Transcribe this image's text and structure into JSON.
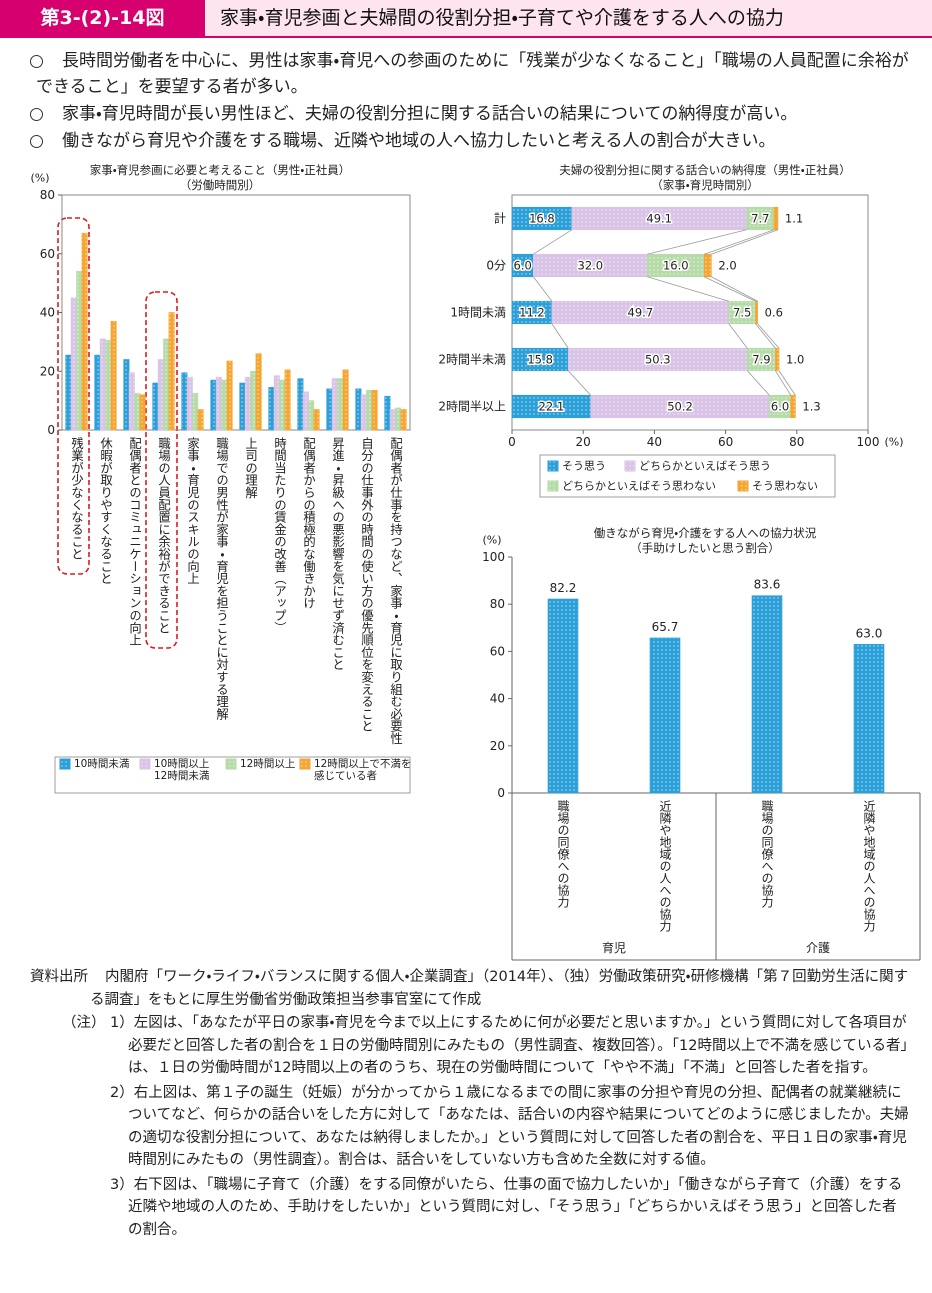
{
  "header": {
    "figure_number": "第3-(2)-14図",
    "title": "家事・育児参画と夫婦間の役割分担・子育てや介護をする人への協力"
  },
  "summary": [
    "長時間労働者を中心に、男性は家事・育児への参画のために「残業が少なくなること」「職場の人員配置に余裕ができること」を要望する者が多い。",
    "家事・育児時間が長い男性ほど、夫婦の役割分担に関する話合いの結果についての納得度が高い。",
    "働きながら育児や介護をする職場、近隣や地域の人へ協力したいと考える人の割合が大きい。"
  ],
  "chart_data": [
    {
      "type": "bar",
      "title": "家事・育児参画に必要と考えること（男性・正社員）",
      "subtitle": "（労働時間別）",
      "y_unit": "(%)",
      "categories": [
        "残業が少なくなること",
        "休暇が取りやすくなること",
        "配偶者とのコミュニケーションの向上",
        "職場の人員配置に余裕ができること",
        "家事・育児のスキルの向上",
        "職場での男性が家事・育児を担うことに対する理解",
        "上司の理解",
        "時間当たりの賃金の改善（アップ）",
        "配偶者からの積極的な働きかけ",
        "昇進・昇級への悪影響を気にせず済むこと",
        "自分の仕事外の時間の使い方の優先順位を変えること",
        "配偶者が仕事を持つなど、家事・育児に取り組む必要性"
      ],
      "series": [
        {
          "name": "10時間未満",
          "color": "#2b9fd8",
          "values": [
            25.5,
            25.5,
            24,
            16,
            19.5,
            17,
            16,
            14.5,
            17.5,
            14,
            14,
            11.5
          ]
        },
        {
          "name": "10時間以上12時間未満",
          "color": "#d9c3e6",
          "values": [
            45,
            31,
            19.5,
            24,
            18,
            18,
            18,
            18.5,
            13,
            17.5,
            12,
            7
          ]
        },
        {
          "name": "12時間以上",
          "color": "#b5dca8",
          "values": [
            54,
            30.5,
            12.5,
            31,
            12.5,
            17,
            20,
            17,
            10,
            17.5,
            13.5,
            7.5
          ]
        },
        {
          "name": "12時間以上で不満を感じている者",
          "color": "#f6a531",
          "values": [
            67,
            37,
            12,
            40,
            7,
            23.5,
            26,
            20.5,
            7,
            20.5,
            13.5,
            7
          ]
        }
      ],
      "ylim": [
        0,
        80
      ],
      "yticks": [
        0,
        20,
        40,
        60,
        80
      ],
      "grid": false,
      "legend": "bottom"
    },
    {
      "type": "bar",
      "orientation": "horizontal",
      "stacked": true,
      "title": "夫婦の役割分担に関する話合いの納得度（男性・正社員）",
      "subtitle": "（家事・育児時間別）",
      "x_unit": "(%)",
      "categories": [
        "計",
        "0分",
        "1時間未満",
        "2時間半未満",
        "2時間半以上"
      ],
      "series": [
        {
          "name": "そう思う",
          "color": "#2b9fd8",
          "values": [
            16.8,
            6.0,
            11.2,
            15.8,
            22.1
          ],
          "value_labels": [
            "16.8",
            "6.0",
            "11.2",
            "15.8",
            "22.1"
          ]
        },
        {
          "name": "どちらかといえばそう思う",
          "color": "#d9c3e6",
          "values": [
            49.1,
            32.0,
            49.7,
            50.3,
            50.2
          ],
          "value_labels": [
            "49.1",
            "32.0",
            "49.7",
            "50.3",
            "50.2"
          ]
        },
        {
          "name": "どちらかといえばそう思わない",
          "color": "#b5dca8",
          "values": [
            7.7,
            16.0,
            7.5,
            7.9,
            6.0
          ],
          "value_labels": [
            "7.7",
            "16.0",
            "7.5",
            "7.9",
            "6.0"
          ]
        },
        {
          "name": "そう思わない",
          "color": "#f6a531",
          "values": [
            1.1,
            2.0,
            0.6,
            1.0,
            1.3
          ],
          "value_labels": [
            "1.1",
            "2.0",
            "0.6",
            "1.0",
            "1.3"
          ]
        }
      ],
      "xlim": [
        0,
        100
      ],
      "xticks": [
        0,
        20,
        40,
        60,
        80,
        100
      ],
      "grid": false,
      "legend": "bottom"
    },
    {
      "type": "bar",
      "title": "働きながら育児・介護をする人への協力状況",
      "subtitle": "（手助けしたいと思う割合）",
      "y_unit": "(%)",
      "categories": [
        "職場の同僚への協力",
        "近隣や地域の人への協力",
        "職場の同僚への協力",
        "近隣や地域の人への協力"
      ],
      "groups": [
        "育児",
        "介護"
      ],
      "values": [
        82.2,
        65.7,
        83.6,
        63.0
      ],
      "value_labels": [
        "82.2",
        "65.7",
        "83.6",
        "63.0"
      ],
      "color": "#2b9fd8",
      "ylim": [
        0,
        100
      ],
      "yticks": [
        0,
        20,
        40,
        60,
        80,
        100
      ],
      "grid": false
    }
  ],
  "source": {
    "label": "資料出所",
    "text": "内閣府「ワーク・ライフ・バランスに関する個人・企業調査」（2014年）、（独）労働政策研究・研修機構「第７回勤労生活に関する調査」をもとに厚生労働省労働政策担当参事官室にて作成"
  },
  "notes": {
    "label": "（注）",
    "items": [
      "1）左図は、「あなたが平日の家事・育児を今まで以上にするために何が必要だと思いますか。」という質問に対して各項目が必要だと回答した者の割合を１日の労働時間別にみたもの（男性調査、複数回答）。「12時間以上で不満を感じている者」は、１日の労働時間が12時間以上の者のうち、現在の労働時間について「やや不満」「不満」と回答した者を指す。",
      "2）右上図は、第１子の誕生（妊娠）が分かってから１歳になるまでの間に家事の分担や育児の分担、配偶者の就業継続についてなど、何らかの話合いをした方に対して「あなたは、話合いの内容や結果についてどのように感じましたか。夫婦の適切な役割分担について、あなたは納得しましたか。」という質問に対して回答した者の割合を、平日１日の家事・育児時間別にみたもの（男性調査）。割合は、話合いをしていない方も含めた全数に対する値。",
      "3）右下図は、「職場に子育て（介護）をする同僚がいたら、仕事の面で協力したいか」「働きながら子育て（介護）をする近隣や地域の人のため、手助けをしたいか」という質問に対し、「そう思う」「どちらかいえばそう思う」と回答した者の割合。"
    ]
  }
}
